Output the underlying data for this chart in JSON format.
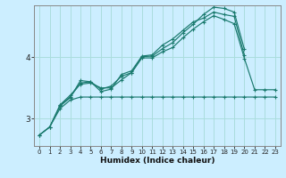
{
  "title": "",
  "xlabel": "Humidex (Indice chaleur)",
  "bg_color": "#cceeff",
  "grid_color": "#aadddd",
  "line_color": "#1a7a6e",
  "xlim": [
    -0.5,
    23.5
  ],
  "ylim": [
    2.55,
    4.85
  ],
  "yticks": [
    3,
    4
  ],
  "xticks": [
    0,
    1,
    2,
    3,
    4,
    5,
    6,
    7,
    8,
    9,
    10,
    11,
    12,
    13,
    14,
    15,
    16,
    17,
    18,
    19,
    20,
    21,
    22,
    23
  ],
  "lines": [
    {
      "x": [
        0,
        1,
        2,
        3,
        4,
        5,
        6,
        7,
        8,
        9,
        10,
        11,
        12,
        13,
        14,
        15,
        16,
        17,
        18,
        19,
        20
      ],
      "y": [
        2.73,
        2.86,
        3.22,
        3.35,
        3.58,
        3.6,
        3.44,
        3.48,
        3.72,
        3.78,
        4.02,
        4.04,
        4.2,
        4.3,
        4.44,
        4.58,
        4.64,
        4.74,
        4.7,
        4.67,
        4.03
      ]
    },
    {
      "x": [
        0,
        1,
        2,
        3,
        4,
        5,
        6,
        7,
        8,
        9,
        10,
        11,
        12,
        13,
        14,
        15,
        16,
        17,
        18,
        19,
        20
      ],
      "y": [
        2.73,
        2.86,
        3.2,
        3.34,
        3.62,
        3.6,
        3.48,
        3.53,
        3.69,
        3.75,
        4.01,
        4.02,
        4.14,
        4.24,
        4.4,
        4.54,
        4.7,
        4.82,
        4.8,
        4.74,
        4.13
      ]
    },
    {
      "x": [
        2,
        3,
        4,
        5,
        6,
        7,
        8,
        9,
        10,
        11,
        12,
        13,
        14,
        15,
        16,
        17,
        18,
        19,
        20,
        21,
        22,
        23
      ],
      "y": [
        3.22,
        3.38,
        3.56,
        3.58,
        3.5,
        3.5,
        3.63,
        3.75,
        3.99,
        3.99,
        4.09,
        4.16,
        4.32,
        4.46,
        4.58,
        4.68,
        4.62,
        4.55,
        3.98,
        3.47,
        3.47,
        3.47
      ]
    },
    {
      "x": [
        0,
        1,
        2,
        3,
        4,
        5,
        6,
        7,
        8,
        9,
        10,
        11,
        12,
        13,
        14,
        15,
        16,
        17,
        18,
        19,
        20,
        21,
        22,
        23
      ],
      "y": [
        2.73,
        2.86,
        3.16,
        3.3,
        3.35,
        3.35,
        3.35,
        3.35,
        3.35,
        3.35,
        3.35,
        3.35,
        3.35,
        3.35,
        3.35,
        3.35,
        3.35,
        3.35,
        3.35,
        3.35,
        3.35,
        3.35,
        3.35,
        3.35
      ]
    }
  ]
}
